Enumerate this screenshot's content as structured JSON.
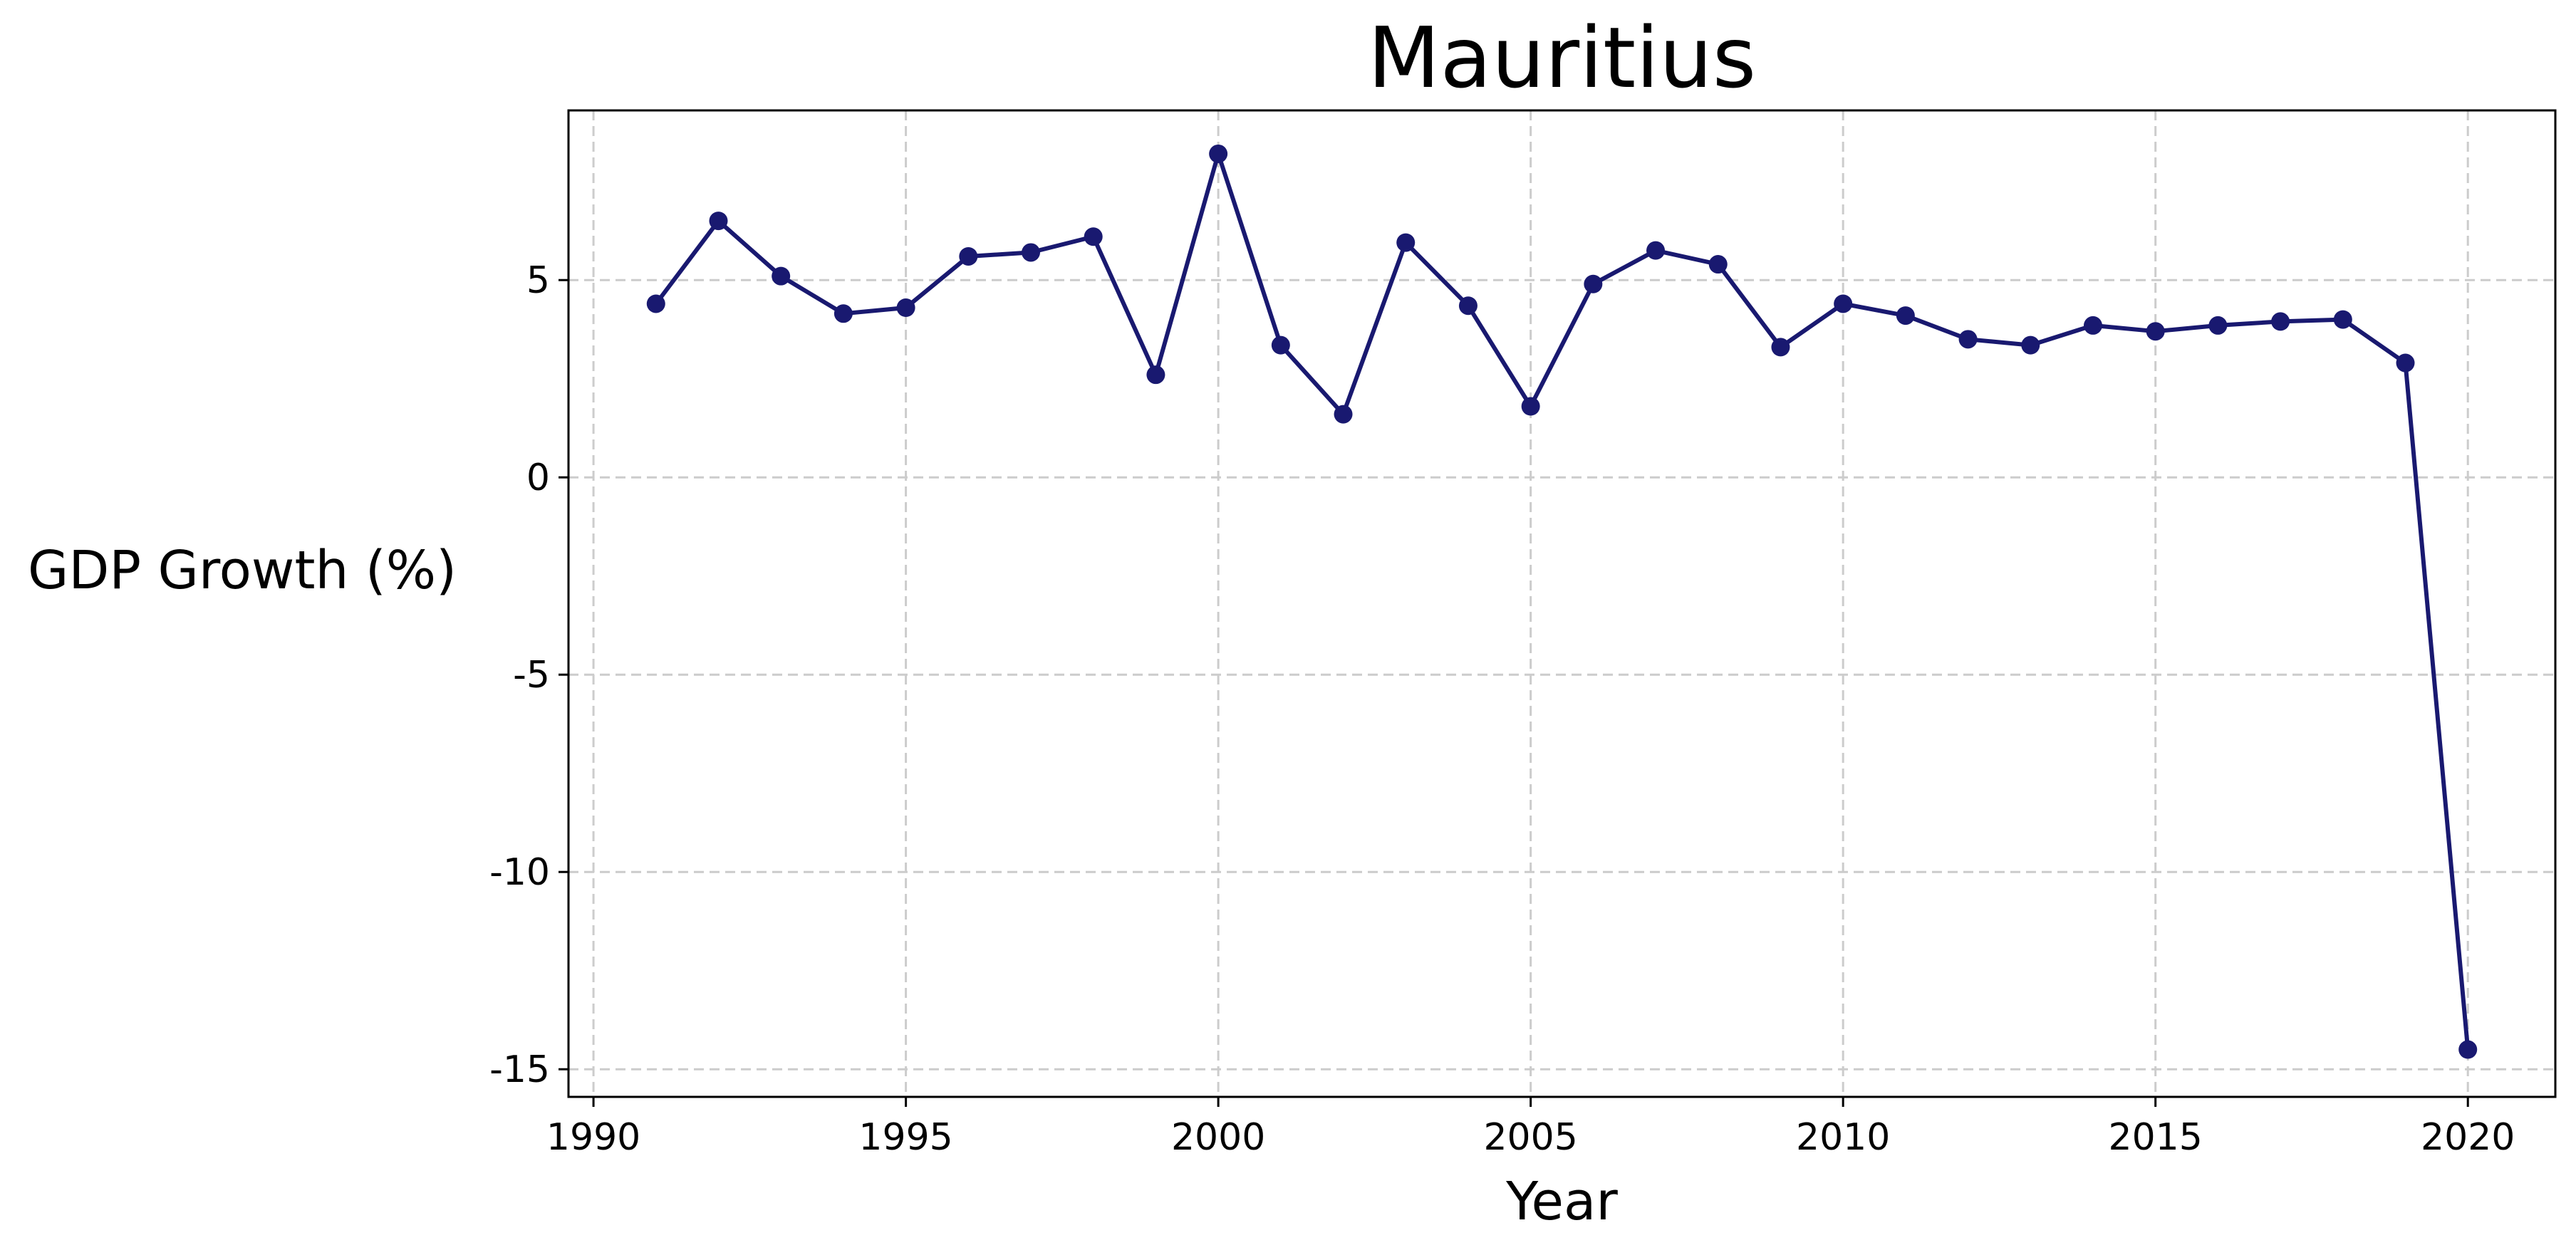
{
  "chart_data": {
    "type": "line",
    "title": "Mauritius",
    "xlabel": "Year",
    "ylabel": "GDP Growth (%)",
    "xlim": [
      1989.6,
      2021.4
    ],
    "ylim": [
      -15.7,
      9.3
    ],
    "xticks": [
      1990,
      1995,
      2000,
      2005,
      2010,
      2015,
      2020
    ],
    "yticks": [
      -15,
      -10,
      -5,
      0,
      5
    ],
    "xtick_labels": [
      "1990",
      "1995",
      "2000",
      "2005",
      "2010",
      "2015",
      "2020"
    ],
    "ytick_labels": [
      "-15",
      "-10",
      "-5",
      "0",
      "5"
    ],
    "grid": true,
    "markers": true,
    "color": "#191970",
    "x": [
      1991,
      1992,
      1993,
      1994,
      1995,
      1996,
      1997,
      1998,
      1999,
      2000,
      2001,
      2002,
      2003,
      2004,
      2005,
      2006,
      2007,
      2008,
      2009,
      2010,
      2011,
      2012,
      2013,
      2014,
      2015,
      2016,
      2017,
      2018,
      2019,
      2020
    ],
    "series": [
      {
        "values": [
          4.4,
          6.5,
          5.1,
          4.15,
          4.3,
          5.6,
          5.7,
          6.1,
          2.6,
          8.2,
          3.35,
          1.6,
          5.95,
          4.35,
          1.8,
          4.9,
          5.75,
          5.4,
          3.3,
          4.4,
          4.1,
          3.5,
          3.35,
          3.85,
          3.7,
          3.85,
          3.95,
          4.0,
          2.9,
          -14.5
        ]
      }
    ]
  }
}
